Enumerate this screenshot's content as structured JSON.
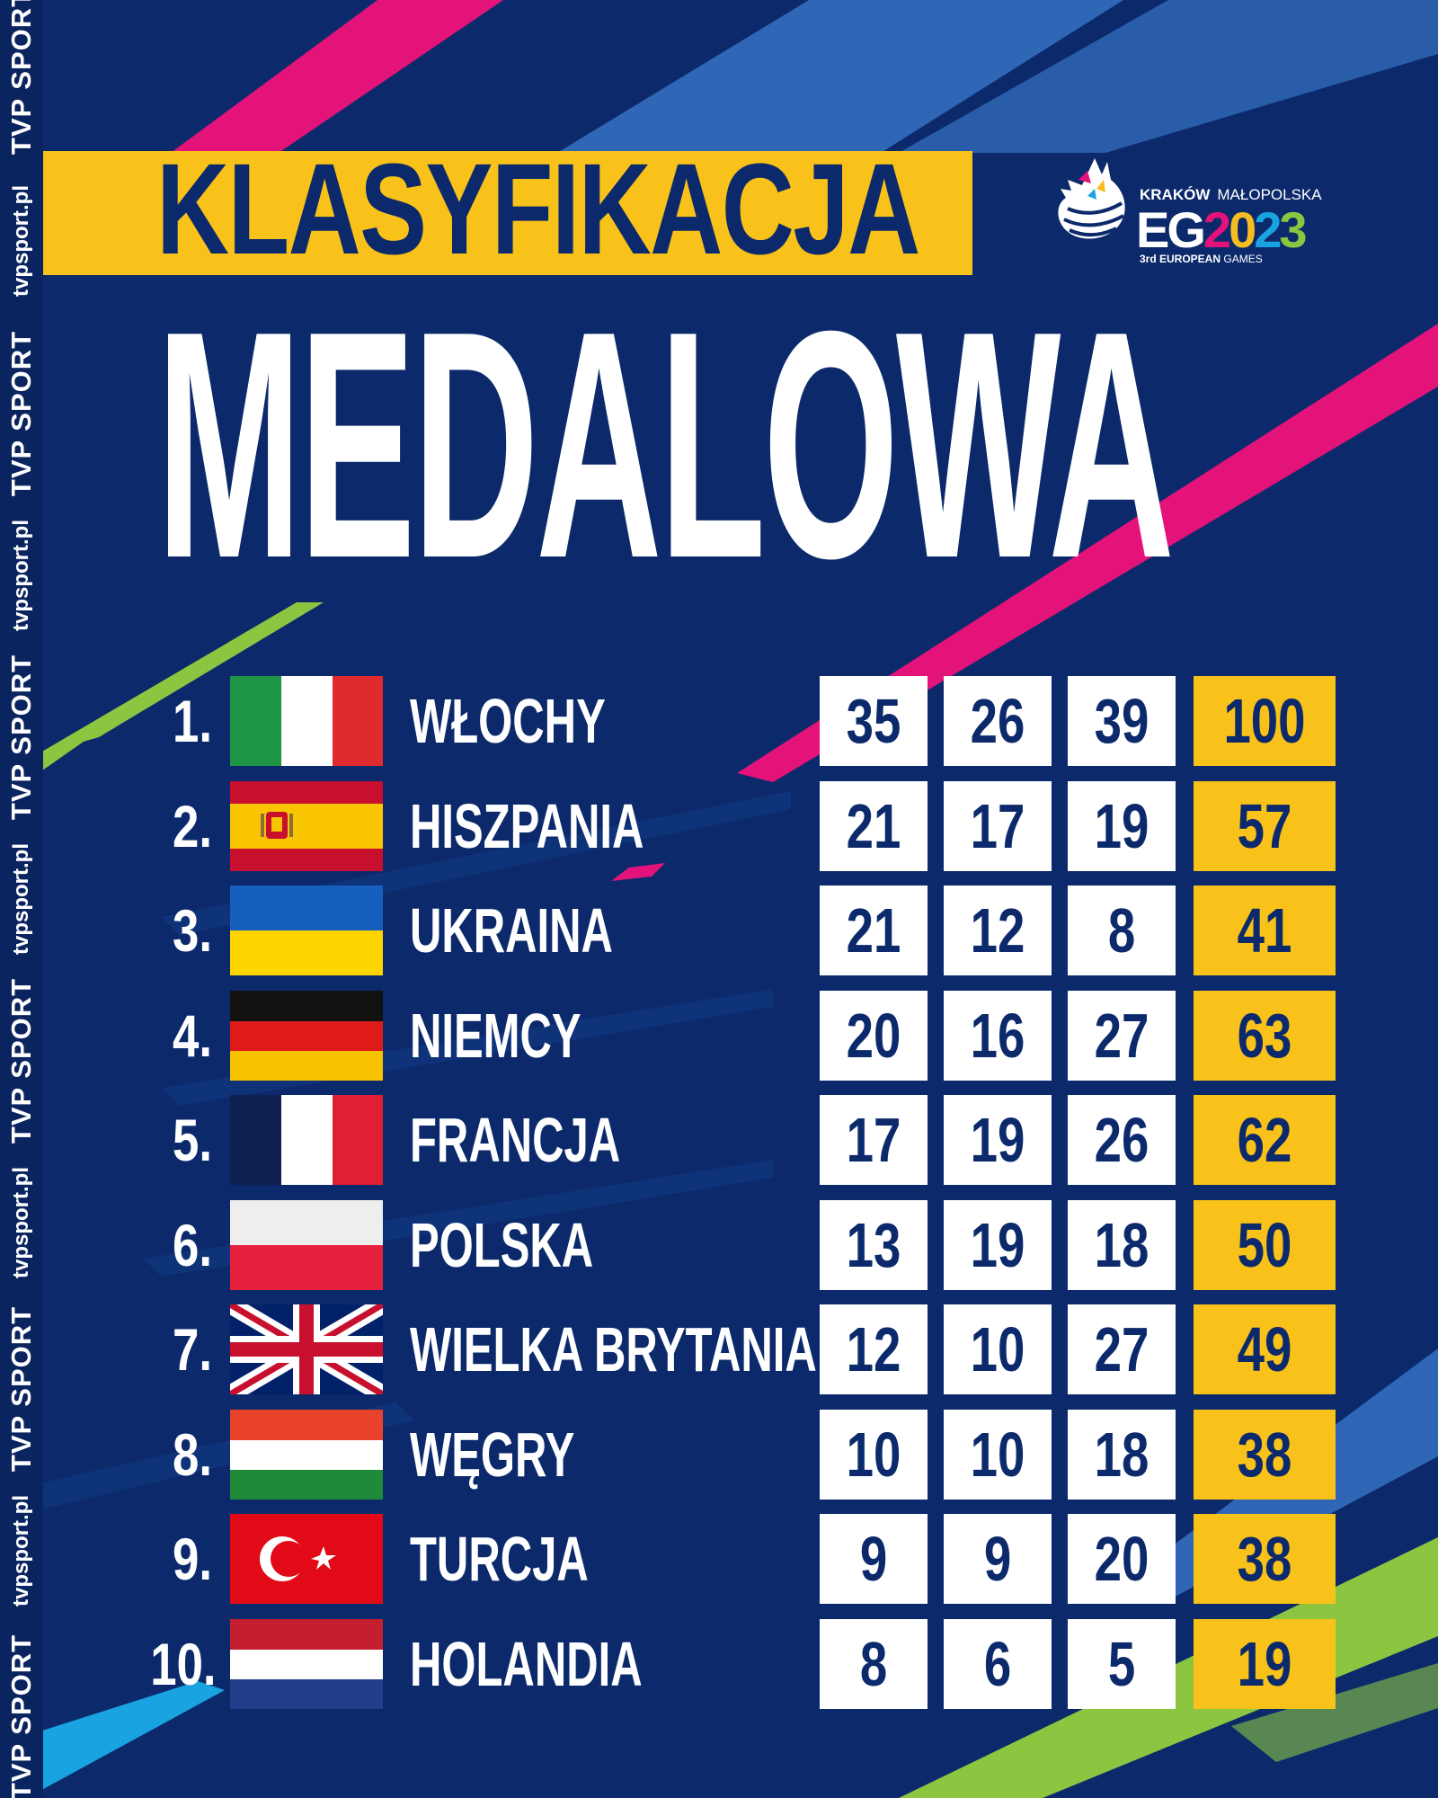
{
  "header": {
    "title_line1": "KLASYFIKACJA",
    "title_line2": "MEDALOWA"
  },
  "logo": {
    "city": "KRAKÓW",
    "region": "MAŁOPOLSKA",
    "games_prefix": "EG",
    "games_year_digits": [
      "2",
      "0",
      "2",
      "3"
    ],
    "subtitle_bold": "3rd EUROPEAN",
    "subtitle_rest": "GAMES"
  },
  "watermark": {
    "brand": "TVP SPORT",
    "url": "tvpsport.pl"
  },
  "colors": {
    "background": "#0c2a6b",
    "accent_yellow": "#f9c21a",
    "accent_pink": "#e4137a",
    "accent_green": "#8cc641",
    "accent_light_blue": "#1aa3e1"
  },
  "rows": [
    {
      "rank": "1.",
      "flag": "italy-flag",
      "country": "WŁOCHY",
      "gold": "35",
      "silver": "26",
      "bronze": "39",
      "total": "100"
    },
    {
      "rank": "2.",
      "flag": "spain-flag",
      "country": "HISZPANIA",
      "gold": "21",
      "silver": "17",
      "bronze": "19",
      "total": "57"
    },
    {
      "rank": "3.",
      "flag": "ukraine-flag",
      "country": "UKRAINA",
      "gold": "21",
      "silver": "12",
      "bronze": "8",
      "total": "41"
    },
    {
      "rank": "4.",
      "flag": "germany-flag",
      "country": "NIEMCY",
      "gold": "20",
      "silver": "16",
      "bronze": "27",
      "total": "63"
    },
    {
      "rank": "5.",
      "flag": "france-flag",
      "country": "FRANCJA",
      "gold": "17",
      "silver": "19",
      "bronze": "26",
      "total": "62"
    },
    {
      "rank": "6.",
      "flag": "poland-flag",
      "country": "POLSKA",
      "gold": "13",
      "silver": "19",
      "bronze": "18",
      "total": "50"
    },
    {
      "rank": "7.",
      "flag": "great-britain-flag",
      "country": "WIELKA BRYTANIA",
      "gold": "12",
      "silver": "10",
      "bronze": "27",
      "total": "49"
    },
    {
      "rank": "8.",
      "flag": "hungary-flag",
      "country": "WĘGRY",
      "gold": "10",
      "silver": "10",
      "bronze": "18",
      "total": "38"
    },
    {
      "rank": "9.",
      "flag": "turkey-flag",
      "country": "TURCJA",
      "gold": "9",
      "silver": "9",
      "bronze": "20",
      "total": "38"
    },
    {
      "rank": "10.",
      "flag": "netherlands-flag",
      "country": "HOLANDIA",
      "gold": "8",
      "silver": "6",
      "bronze": "5",
      "total": "19"
    }
  ]
}
